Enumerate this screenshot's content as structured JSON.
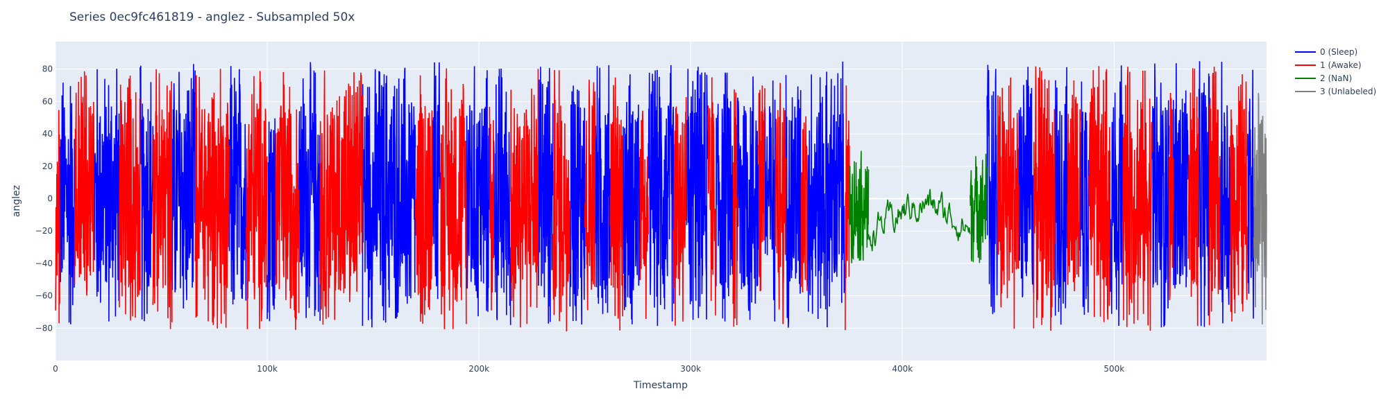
{
  "chart_data": {
    "type": "line",
    "title": "Series 0ec9fc461819 - anglez - Subsampled 50x",
    "xlabel": "Timestamp",
    "ylabel": "anglez",
    "xlim": [
      0,
      572000
    ],
    "ylim": [
      -100,
      97
    ],
    "x_ticks": [
      {
        "value": 0,
        "label": "0"
      },
      {
        "value": 100000,
        "label": "100k"
      },
      {
        "value": 200000,
        "label": "200k"
      },
      {
        "value": 300000,
        "label": "300k"
      },
      {
        "value": 400000,
        "label": "400k"
      },
      {
        "value": 500000,
        "label": "500k"
      }
    ],
    "y_ticks": [
      {
        "value": 80,
        "label": "80"
      },
      {
        "value": 60,
        "label": "60"
      },
      {
        "value": 40,
        "label": "40"
      },
      {
        "value": 20,
        "label": "20"
      },
      {
        "value": 0,
        "label": "0"
      },
      {
        "value": -20,
        "label": "−20"
      },
      {
        "value": -40,
        "label": "−40"
      },
      {
        "value": -60,
        "label": "−60"
      },
      {
        "value": -80,
        "label": "−80"
      }
    ],
    "grid": true,
    "legend_position": "top-right outside",
    "series": [
      {
        "name": "0 (Sleep)",
        "color": "#0000ff",
        "segments": [
          [
            2000,
            9000
          ],
          [
            18000,
            30000
          ],
          [
            40000,
            46000
          ],
          [
            55000,
            66000
          ],
          [
            82000,
            90000
          ],
          [
            100000,
            104000
          ],
          [
            115000,
            125000
          ],
          [
            145000,
            170000
          ],
          [
            178000,
            182000
          ],
          [
            194000,
            205000
          ],
          [
            207000,
            215000
          ],
          [
            228000,
            235000
          ],
          [
            243000,
            250000
          ],
          [
            255000,
            262000
          ],
          [
            268000,
            276000
          ],
          [
            280000,
            292000
          ],
          [
            298000,
            308000
          ],
          [
            312000,
            320000
          ],
          [
            322000,
            332000
          ],
          [
            335000,
            340000
          ],
          [
            345000,
            352000
          ],
          [
            355000,
            373000
          ],
          [
            440000,
            445000
          ],
          [
            455000,
            462000
          ],
          [
            472000,
            478000
          ],
          [
            484000,
            488000
          ],
          [
            498000,
            504000
          ],
          [
            518000,
            526000
          ],
          [
            528000,
            535000
          ],
          [
            540000,
            545000
          ],
          [
            550000,
            555000
          ],
          [
            563000,
            566000
          ]
        ],
        "y": [
          -80,
          85
        ]
      },
      {
        "name": "1 (Awake)",
        "color": "#ff0000",
        "segments": [
          [
            0,
            2000
          ],
          [
            9000,
            18000
          ],
          [
            30000,
            40000
          ],
          [
            46000,
            55000
          ],
          [
            66000,
            82000
          ],
          [
            90000,
            100000
          ],
          [
            104000,
            115000
          ],
          [
            125000,
            145000
          ],
          [
            170000,
            178000
          ],
          [
            182000,
            194000
          ],
          [
            205000,
            207000
          ],
          [
            215000,
            228000
          ],
          [
            235000,
            243000
          ],
          [
            250000,
            255000
          ],
          [
            262000,
            268000
          ],
          [
            276000,
            280000
          ],
          [
            292000,
            298000
          ],
          [
            308000,
            312000
          ],
          [
            320000,
            322000
          ],
          [
            332000,
            335000
          ],
          [
            340000,
            345000
          ],
          [
            352000,
            355000
          ],
          [
            373000,
            375000
          ],
          [
            445000,
            455000
          ],
          [
            462000,
            472000
          ],
          [
            478000,
            484000
          ],
          [
            488000,
            498000
          ],
          [
            504000,
            518000
          ],
          [
            526000,
            528000
          ],
          [
            535000,
            540000
          ],
          [
            545000,
            550000
          ],
          [
            555000,
            563000
          ]
        ],
        "y": [
          -82,
          82
        ]
      },
      {
        "name": "2 (NaN)",
        "color": "#008000",
        "segments": [
          [
            375000,
            384000
          ],
          [
            384000,
            432000
          ],
          [
            432000,
            440000
          ]
        ],
        "y": [
          -40,
          30
        ]
      },
      {
        "name": "3 (Unlabeled)",
        "color": "#808080",
        "segments": [
          [
            566000,
            572000
          ]
        ],
        "y": [
          -80,
          70
        ]
      }
    ]
  }
}
